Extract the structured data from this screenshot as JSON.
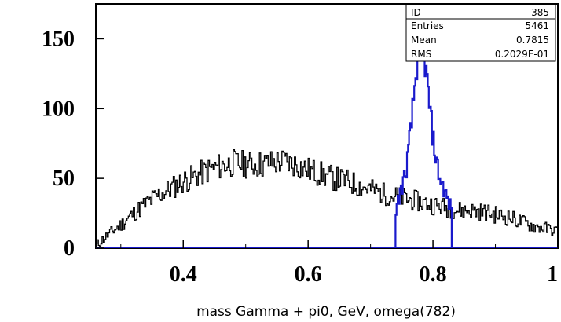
{
  "chart_data": {
    "type": "histogram",
    "title": "",
    "xlabel": "mass Gamma + pi0, GeV, omega(782)",
    "ylabel": "",
    "xlim": [
      0.26,
      1.0
    ],
    "ylim": [
      0,
      175
    ],
    "xticks": [
      0.4,
      0.6,
      0.8,
      1.0
    ],
    "xtick_labels": [
      "0.4",
      "0.6",
      "0.8",
      "1"
    ],
    "yticks": [
      0,
      50,
      100,
      150
    ],
    "ytick_labels": [
      "0",
      "50",
      "100",
      "150"
    ],
    "grid": false,
    "stats_box": {
      "position": "top-right",
      "rows": [
        {
          "label": "ID",
          "value": "385"
        },
        {
          "label": "Entries",
          "value": "5461"
        },
        {
          "label": "Mean",
          "value": "0.7815"
        },
        {
          "label": "RMS",
          "value": "0.2029E-01"
        }
      ]
    },
    "series": [
      {
        "color": "#000000",
        "points": [
          [
            0.26,
            2
          ],
          [
            0.28,
            10
          ],
          [
            0.3,
            17
          ],
          [
            0.32,
            25
          ],
          [
            0.34,
            32
          ],
          [
            0.36,
            38
          ],
          [
            0.38,
            43
          ],
          [
            0.4,
            48
          ],
          [
            0.42,
            52
          ],
          [
            0.44,
            56
          ],
          [
            0.46,
            59
          ],
          [
            0.48,
            61
          ],
          [
            0.5,
            60
          ],
          [
            0.52,
            60
          ],
          [
            0.54,
            61
          ],
          [
            0.56,
            62
          ],
          [
            0.58,
            60
          ],
          [
            0.6,
            56
          ],
          [
            0.62,
            53
          ],
          [
            0.64,
            50
          ],
          [
            0.66,
            48
          ],
          [
            0.68,
            45
          ],
          [
            0.7,
            42
          ],
          [
            0.72,
            39
          ],
          [
            0.74,
            37
          ],
          [
            0.76,
            35
          ],
          [
            0.78,
            33
          ],
          [
            0.8,
            31
          ],
          [
            0.82,
            29
          ],
          [
            0.84,
            27
          ],
          [
            0.86,
            27
          ],
          [
            0.88,
            26
          ],
          [
            0.9,
            24
          ],
          [
            0.92,
            22
          ],
          [
            0.94,
            19
          ],
          [
            0.96,
            16
          ],
          [
            0.98,
            14
          ],
          [
            1.0,
            12
          ]
        ]
      },
      {
        "color": "#1a1acc",
        "points": [
          [
            0.74,
            0
          ],
          [
            0.74,
            28
          ],
          [
            0.745,
            37
          ],
          [
            0.75,
            45
          ],
          [
            0.755,
            52
          ],
          [
            0.76,
            70
          ],
          [
            0.765,
            90
          ],
          [
            0.77,
            115
          ],
          [
            0.775,
            140
          ],
          [
            0.78,
            156
          ],
          [
            0.785,
            140
          ],
          [
            0.79,
            118
          ],
          [
            0.795,
            96
          ],
          [
            0.8,
            76
          ],
          [
            0.805,
            62
          ],
          [
            0.81,
            50
          ],
          [
            0.815,
            45
          ],
          [
            0.82,
            38
          ],
          [
            0.825,
            32
          ],
          [
            0.83,
            27
          ],
          [
            0.83,
            0
          ]
        ]
      }
    ]
  }
}
